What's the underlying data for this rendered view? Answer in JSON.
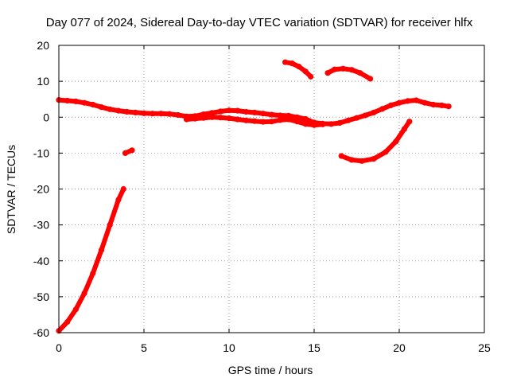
{
  "chart_data": {
    "type": "scatter",
    "title": "Day 077 of 2024, Sidereal Day-to-day VTEC variation (SDTVAR) for receiver hlfx",
    "xlabel": "GPS time / hours",
    "ylabel": "SDTVAR / TECUs",
    "xlim": [
      0,
      25
    ],
    "ylim": [
      -60,
      20
    ],
    "xticks": [
      "0",
      "5",
      "10",
      "15",
      "20",
      "25"
    ],
    "yticks": [
      "-60",
      "-50",
      "-40",
      "-30",
      "-20",
      "-10",
      "0",
      "10",
      "20"
    ],
    "grid": true,
    "series_color": "#ff0000",
    "series": [
      {
        "name": "main-band",
        "points": [
          [
            0,
            4.8
          ],
          [
            0.5,
            4.6
          ],
          [
            1,
            4.4
          ],
          [
            1.5,
            4.0
          ],
          [
            2,
            3.5
          ],
          [
            2.5,
            2.8
          ],
          [
            3,
            2.2
          ],
          [
            3.5,
            1.8
          ],
          [
            4,
            1.5
          ],
          [
            4.5,
            1.3
          ],
          [
            5,
            1.1
          ],
          [
            5.5,
            1.0
          ],
          [
            6,
            1.0
          ],
          [
            6.5,
            0.9
          ],
          [
            7,
            0.6
          ],
          [
            7.5,
            0.2
          ],
          [
            8,
            0.3
          ],
          [
            8.5,
            0.8
          ],
          [
            9,
            1.2
          ],
          [
            9.5,
            1.6
          ],
          [
            10,
            1.9
          ],
          [
            10.5,
            1.8
          ],
          [
            11,
            1.5
          ],
          [
            11.5,
            1.3
          ],
          [
            12,
            1.0
          ],
          [
            12.5,
            0.7
          ],
          [
            13,
            0.5
          ],
          [
            13.5,
            0.4
          ],
          [
            14,
            0.0
          ],
          [
            14.5,
            -0.5
          ],
          [
            15,
            -1.5
          ],
          [
            15.5,
            -1.8
          ],
          [
            16,
            -1.9
          ],
          [
            16.5,
            -1.6
          ],
          [
            17,
            -0.9
          ],
          [
            17.5,
            -0.2
          ],
          [
            18,
            0.5
          ],
          [
            18.5,
            1.3
          ],
          [
            19,
            2.3
          ],
          [
            19.5,
            3.3
          ],
          [
            20,
            4.0
          ],
          [
            20.5,
            4.5
          ],
          [
            21,
            4.7
          ],
          [
            21.5,
            4.0
          ],
          [
            22,
            3.5
          ],
          [
            22.5,
            3.3
          ],
          [
            22.9,
            3.0
          ]
        ]
      },
      {
        "name": "lower-band",
        "points": [
          [
            7.5,
            -0.6
          ],
          [
            8,
            -0.4
          ],
          [
            8.5,
            -0.2
          ],
          [
            9,
            0.0
          ],
          [
            9.5,
            -0.1
          ],
          [
            10,
            -0.3
          ],
          [
            10.5,
            -0.6
          ],
          [
            11,
            -0.9
          ],
          [
            11.5,
            -1.1
          ],
          [
            12,
            -1.3
          ],
          [
            12.5,
            -1.2
          ],
          [
            13,
            -0.8
          ],
          [
            13.5,
            -0.6
          ],
          [
            14,
            -1.2
          ],
          [
            14.5,
            -1.9
          ],
          [
            15,
            -2.2
          ],
          [
            15.5,
            -2.0
          ]
        ]
      },
      {
        "name": "early-drop",
        "points": [
          [
            0,
            -59.5
          ],
          [
            0.5,
            -57.0
          ],
          [
            1,
            -53.5
          ],
          [
            1.5,
            -49.0
          ],
          [
            2,
            -43.5
          ],
          [
            2.5,
            -37.0
          ],
          [
            3,
            -30.0
          ],
          [
            3.5,
            -23.0
          ],
          [
            3.8,
            -20.0
          ]
        ]
      },
      {
        "name": "short-segment",
        "points": [
          [
            3.9,
            -10.0
          ],
          [
            4.3,
            -9.2
          ]
        ]
      },
      {
        "name": "arc-a",
        "points": [
          [
            13.3,
            15.3
          ],
          [
            13.7,
            15.0
          ],
          [
            14.1,
            14.1
          ],
          [
            14.5,
            12.7
          ],
          [
            14.8,
            11.3
          ]
        ]
      },
      {
        "name": "arc-b",
        "points": [
          [
            15.8,
            12.3
          ],
          [
            16.2,
            13.3
          ],
          [
            16.7,
            13.5
          ],
          [
            17.2,
            13.2
          ],
          [
            17.7,
            12.3
          ],
          [
            18.3,
            10.7
          ]
        ]
      },
      {
        "name": "arc-c",
        "points": [
          [
            16.6,
            -10.8
          ],
          [
            17.2,
            -11.9
          ],
          [
            17.8,
            -12.2
          ],
          [
            18.5,
            -11.6
          ],
          [
            19.2,
            -9.7
          ],
          [
            19.8,
            -6.8
          ],
          [
            20.3,
            -3.3
          ],
          [
            20.6,
            -1.2
          ]
        ]
      }
    ]
  }
}
